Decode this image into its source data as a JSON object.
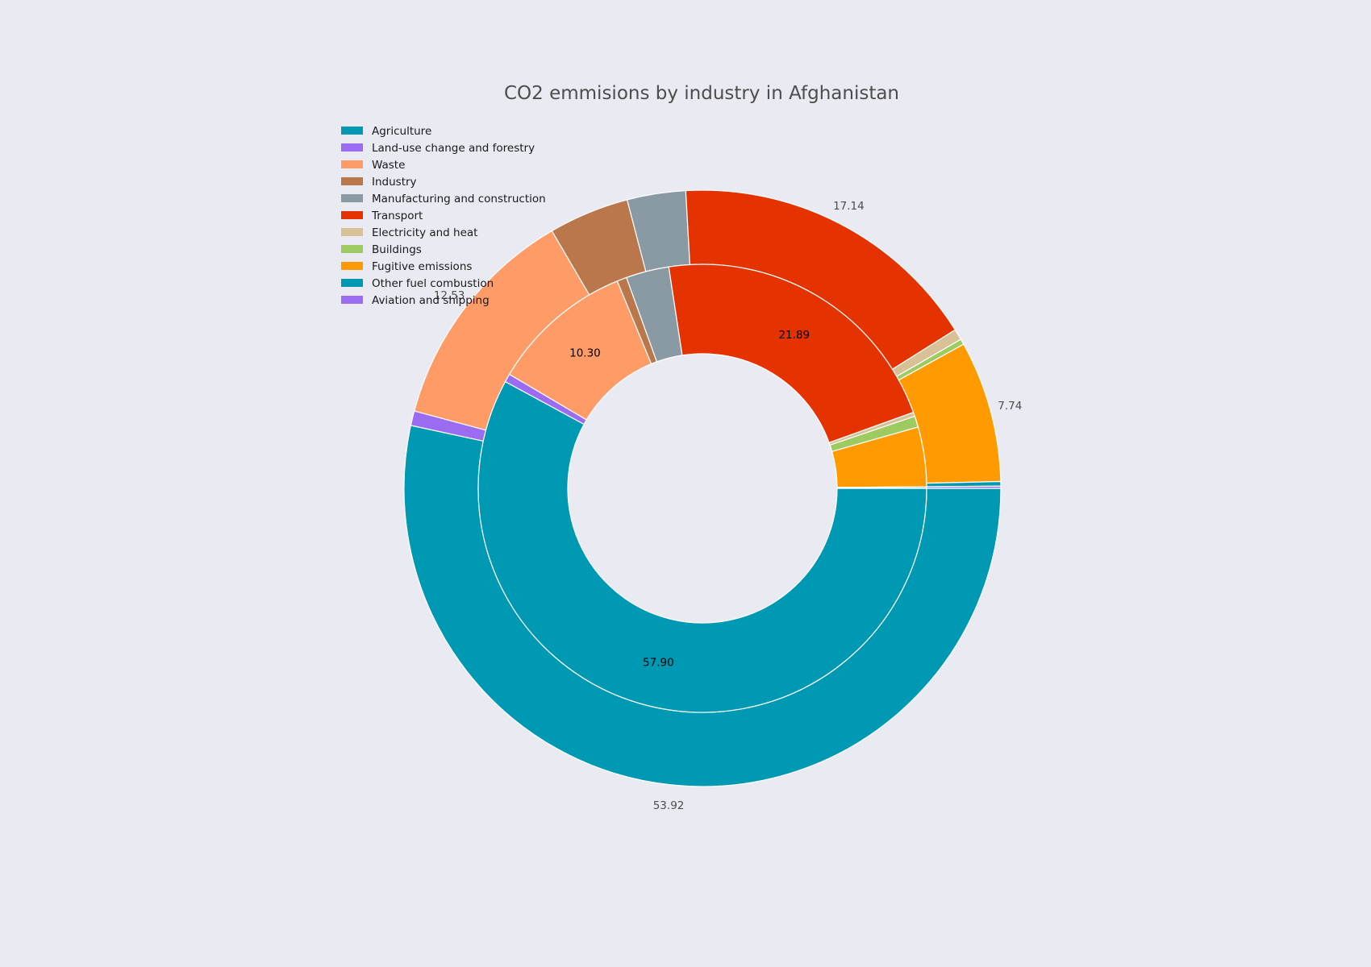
{
  "chart_data": {
    "type": "pie",
    "title": "CO2 emmisions by industry in Afghanistan",
    "categories": [
      "Agriculture",
      "Land-use change and forestry",
      "Waste",
      "Industry",
      "Manufacturing and construction",
      "Transport",
      "Electricity and heat",
      "Buildings",
      "Fugitive emissions",
      "Other fuel combustion",
      "Aviation and shipping"
    ],
    "colors": [
      "#0099b4",
      "#9b6cf2",
      "#ff9b66",
      "#bb774c",
      "#899aa4",
      "#e43300",
      "#d8c197",
      "#9dcb61",
      "#ff9b00",
      "#0099b4",
      "#9b6cf2"
    ],
    "legend_position": "top-left",
    "series": [
      {
        "ring": "inner",
        "values": [
          57.9,
          0.6,
          10.3,
          0.7,
          3.1,
          21.89,
          0.3,
          0.8,
          4.3,
          0.1,
          0.01
        ],
        "labels_shown": [
          "57.90",
          "10.30",
          "21.89"
        ]
      },
      {
        "ring": "outer",
        "values": [
          53.92,
          0.8,
          12.53,
          4.4,
          3.2,
          17.14,
          0.6,
          0.3,
          7.74,
          0.25,
          0.12
        ],
        "labels_shown": [
          "53.92",
          "12.53",
          "17.14",
          "7.74"
        ]
      }
    ]
  }
}
